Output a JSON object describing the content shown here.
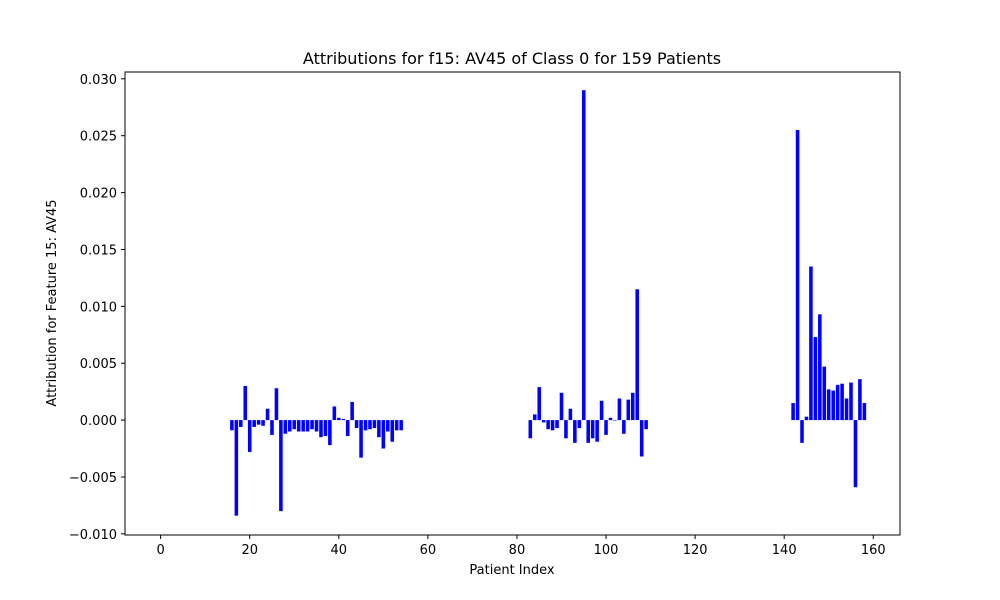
{
  "chart_data": {
    "type": "bar",
    "title": "Attributions for f15: AV45 of Class 0 for 159 Patients",
    "xlabel": "Patient Index",
    "ylabel": "Attribution for Feature 15: AV45",
    "xlim": [
      -8,
      166
    ],
    "ylim": [
      -0.0101,
      0.0306
    ],
    "xticks": [
      0,
      20,
      40,
      60,
      80,
      100,
      120,
      140,
      160
    ],
    "yticks": [
      -0.01,
      -0.005,
      0.0,
      0.005,
      0.01,
      0.015,
      0.02,
      0.025,
      0.03
    ],
    "ytick_labels": [
      "−0.010",
      "−0.005",
      "0.000",
      "0.005",
      "0.010",
      "0.015",
      "0.020",
      "0.025",
      "0.030"
    ],
    "xtick_labels": [
      "0",
      "20",
      "40",
      "60",
      "80",
      "100",
      "120",
      "140",
      "160"
    ],
    "bar_color": "#0000ff",
    "grid": false,
    "x": [
      16,
      17,
      18,
      19,
      20,
      21,
      22,
      23,
      24,
      25,
      26,
      27,
      28,
      29,
      30,
      31,
      32,
      33,
      34,
      35,
      36,
      37,
      38,
      39,
      40,
      41,
      42,
      43,
      44,
      45,
      46,
      47,
      48,
      49,
      50,
      51,
      52,
      53,
      54,
      83,
      84,
      85,
      86,
      87,
      88,
      89,
      90,
      91,
      92,
      93,
      94,
      95,
      96,
      97,
      98,
      99,
      100,
      101,
      102,
      103,
      104,
      105,
      106,
      107,
      108,
      109,
      142,
      143,
      144,
      145,
      146,
      147,
      148,
      149,
      150,
      151,
      152,
      153,
      154,
      155,
      156,
      157,
      158
    ],
    "values": [
      -0.0009,
      -0.0084,
      -0.0006,
      0.003,
      -0.0028,
      -0.0006,
      -0.0004,
      -0.0005,
      0.001,
      -0.0013,
      0.0028,
      -0.008,
      -0.0012,
      -0.001,
      -0.0008,
      -0.001,
      -0.001,
      -0.001,
      -0.0008,
      -0.001,
      -0.0015,
      -0.0014,
      -0.0022,
      0.0012,
      0.0002,
      0.0001,
      -0.0014,
      0.0016,
      -0.0007,
      -0.0033,
      -0.0009,
      -0.0008,
      -0.0007,
      -0.0015,
      -0.0025,
      -0.001,
      -0.0019,
      -0.0009,
      -0.0009,
      -0.0016,
      0.0005,
      0.0029,
      -0.0002,
      -0.0008,
      -0.0009,
      -0.0007,
      0.0024,
      -0.0016,
      0.001,
      -0.002,
      -0.0007,
      0.029,
      -0.002,
      -0.0016,
      -0.0019,
      0.0017,
      -0.0013,
      0.0002,
      0.0,
      0.0019,
      -0.0012,
      0.0018,
      0.0024,
      0.0115,
      -0.0032,
      -0.0008,
      0.0015,
      0.0255,
      -0.002,
      0.0003,
      0.0135,
      0.0073,
      0.0093,
      0.0047,
      0.0027,
      0.0026,
      0.0031,
      0.0032,
      0.0019,
      0.0033,
      -0.0059,
      0.0036,
      0.0015
    ]
  }
}
